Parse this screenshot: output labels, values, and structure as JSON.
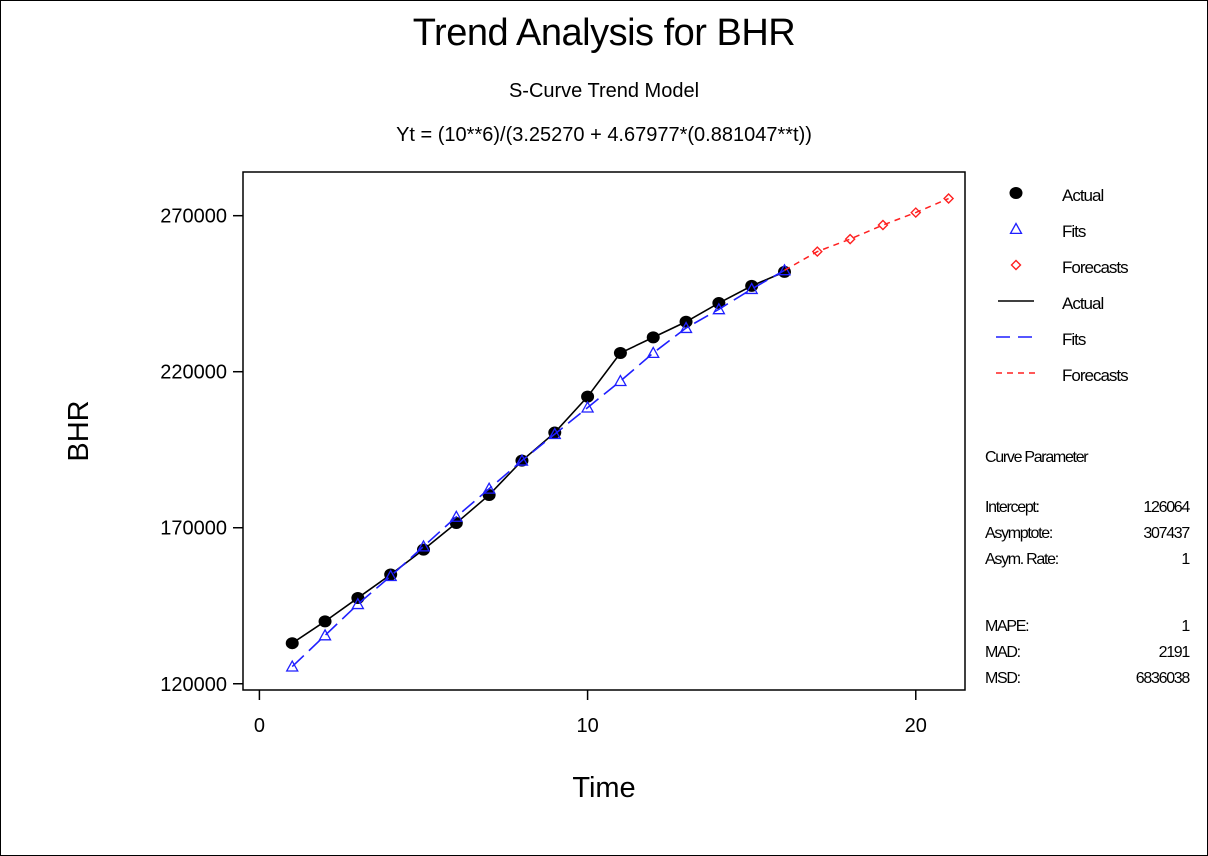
{
  "chart_data": {
    "type": "line",
    "title": "Trend Analysis for BHR",
    "subtitle": "S-Curve Trend Model",
    "equation": "Yt = (10**6)/(3.25270 + 4.67977*(0.881047**t))",
    "xlabel": "Time",
    "ylabel": "BHR",
    "xlim": [
      -0.5,
      21.5
    ],
    "ylim": [
      118000,
      284000
    ],
    "x_ticks": [
      0,
      10,
      20
    ],
    "y_ticks": [
      120000,
      170000,
      220000,
      270000
    ],
    "grid": false,
    "legend_position": "right",
    "series": [
      {
        "name": "Actual",
        "style": "solid-line-with-dots",
        "color": "#000000",
        "x": [
          1,
          2,
          3,
          4,
          5,
          6,
          7,
          8,
          9,
          10,
          11,
          12,
          13,
          14,
          15,
          16
        ],
        "values": [
          133000,
          140000,
          147500,
          155000,
          163000,
          171500,
          180500,
          191500,
          200500,
          212000,
          226000,
          231000,
          236000,
          242000,
          247500,
          252000
        ]
      },
      {
        "name": "Fits",
        "style": "dashed-line-with-triangles",
        "color": "#1f1fff",
        "x": [
          1,
          2,
          3,
          4,
          5,
          6,
          7,
          8,
          9,
          10,
          11,
          12,
          13,
          14,
          15,
          16
        ],
        "values": [
          125500,
          135500,
          145500,
          154500,
          164000,
          173500,
          182500,
          191500,
          200000,
          208500,
          217000,
          226000,
          234000,
          240000,
          246500,
          252500
        ]
      },
      {
        "name": "Forecasts",
        "style": "dashed-line-with-diamonds",
        "color": "#ff2020",
        "x": [
          17,
          18,
          19,
          20,
          21
        ],
        "values": [
          258500,
          262500,
          267000,
          271000,
          275500
        ]
      }
    ]
  },
  "legend": {
    "items": [
      {
        "label": "Actual",
        "kind": "dot-marker",
        "color": "#000000"
      },
      {
        "label": "Fits",
        "kind": "triangle-marker",
        "color": "#1f1fff"
      },
      {
        "label": "Forecasts",
        "kind": "diamond-marker",
        "color": "#ff2020"
      },
      {
        "label": "Actual",
        "kind": "solid-line",
        "color": "#000000"
      },
      {
        "label": "Fits",
        "kind": "dashed-line",
        "color": "#1f1fff"
      },
      {
        "label": "Forecasts",
        "kind": "short-dashed-line",
        "color": "#ff2020"
      }
    ]
  },
  "curve_parameters": {
    "heading": "Curve Parameter",
    "rows": [
      {
        "label": "Intercept:",
        "value": "126064"
      },
      {
        "label": "Asymptote:",
        "value": "307437"
      },
      {
        "label": "Asym. Rate:",
        "value": "1"
      }
    ]
  },
  "accuracy_measures": {
    "rows": [
      {
        "label": "MAPE:",
        "value": "1"
      },
      {
        "label": "MAD:",
        "value": "2191"
      },
      {
        "label": "MSD:",
        "value": "6836038"
      }
    ]
  }
}
